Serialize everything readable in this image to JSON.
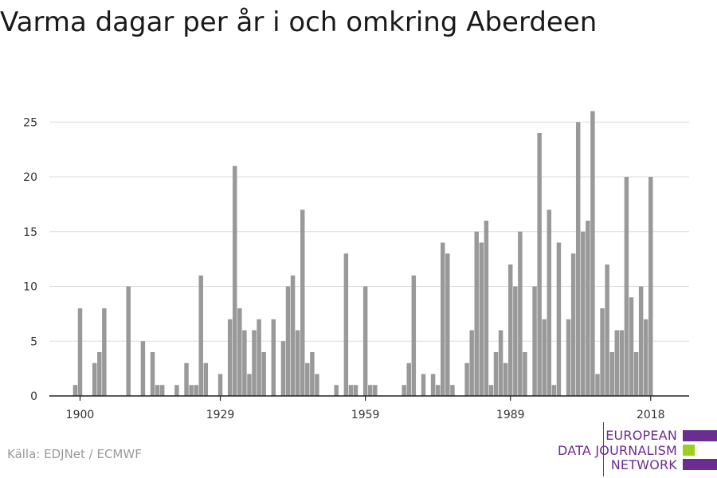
{
  "title": "Varma dagar per år i och omkring Aberdeen",
  "source": "Källa: EDJNet / ECMWF",
  "logo": {
    "lines": [
      "EUROPEAN",
      "DATA JOURNALISM",
      "NETWORK"
    ],
    "colors": {
      "purple": "#6b2d8f",
      "green": "#9bd11e"
    }
  },
  "chart_data": {
    "type": "bar",
    "title": "Varma dagar per år i och omkring Aberdeen",
    "xlabel": "",
    "ylabel": "",
    "xlim": [
      1897,
      2024
    ],
    "ylim": [
      0,
      26
    ],
    "yticks": [
      0,
      5,
      10,
      15,
      20,
      25
    ],
    "xticks": [
      1900,
      1929,
      1959,
      1989,
      2018
    ],
    "grid": "horizontal",
    "bar_color": "#999999",
    "x": [
      1899,
      1900,
      1901,
      1902,
      1903,
      1904,
      1905,
      1906,
      1907,
      1908,
      1909,
      1910,
      1911,
      1912,
      1913,
      1914,
      1915,
      1916,
      1917,
      1918,
      1919,
      1920,
      1921,
      1922,
      1923,
      1924,
      1925,
      1926,
      1927,
      1928,
      1929,
      1930,
      1931,
      1932,
      1933,
      1934,
      1935,
      1936,
      1937,
      1938,
      1939,
      1940,
      1941,
      1942,
      1943,
      1944,
      1945,
      1946,
      1947,
      1948,
      1949,
      1950,
      1951,
      1952,
      1953,
      1954,
      1955,
      1956,
      1957,
      1958,
      1959,
      1960,
      1961,
      1962,
      1963,
      1964,
      1965,
      1966,
      1967,
      1968,
      1969,
      1970,
      1971,
      1972,
      1973,
      1974,
      1975,
      1976,
      1977,
      1978,
      1979,
      1980,
      1981,
      1982,
      1983,
      1984,
      1985,
      1986,
      1987,
      1988,
      1989,
      1990,
      1991,
      1992,
      1993,
      1994,
      1995,
      1996,
      1997,
      1998,
      1999,
      2000,
      2001,
      2002,
      2003,
      2004,
      2005,
      2006,
      2007,
      2008,
      2009,
      2010,
      2011,
      2012,
      2013,
      2014,
      2015,
      2016,
      2017,
      2018
    ],
    "values": [
      1,
      8,
      0,
      0,
      3,
      4,
      8,
      0,
      0,
      0,
      0,
      10,
      0,
      0,
      5,
      0,
      4,
      1,
      1,
      0,
      0,
      1,
      0,
      3,
      1,
      1,
      11,
      3,
      0,
      0,
      2,
      0,
      7,
      21,
      8,
      6,
      2,
      6,
      7,
      4,
      0,
      7,
      0,
      5,
      10,
      11,
      6,
      17,
      3,
      4,
      2,
      0,
      0,
      0,
      1,
      0,
      13,
      1,
      1,
      0,
      10,
      1,
      1,
      0,
      0,
      0,
      0,
      0,
      1,
      3,
      11,
      0,
      2,
      0,
      2,
      1,
      14,
      13,
      1,
      0,
      0,
      3,
      6,
      15,
      14,
      16,
      1,
      4,
      6,
      3,
      12,
      10,
      15,
      4,
      0,
      10,
      24,
      7,
      17,
      1,
      14,
      0,
      7,
      13,
      25,
      15,
      16,
      26,
      2,
      8,
      12,
      4,
      6,
      6,
      20,
      9,
      4,
      10,
      7,
      20
    ]
  }
}
